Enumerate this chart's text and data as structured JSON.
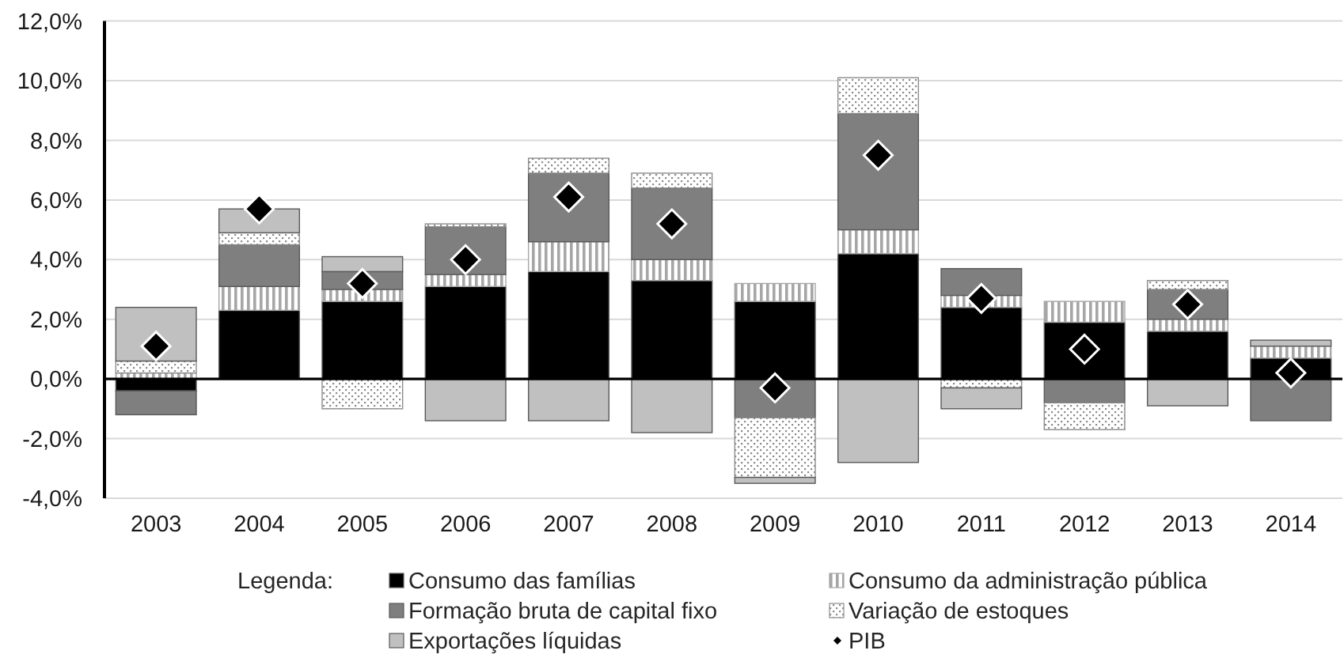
{
  "chart_data": {
    "type": "bar",
    "stacked": true,
    "categories": [
      "2003",
      "2004",
      "2005",
      "2006",
      "2007",
      "2008",
      "2009",
      "2010",
      "2011",
      "2012",
      "2013",
      "2014"
    ],
    "series": [
      {
        "name": "Consumo das famílias",
        "color": "#000000",
        "values": [
          -0.4,
          2.3,
          2.6,
          3.1,
          3.6,
          3.3,
          2.6,
          4.2,
          2.4,
          1.9,
          1.6,
          0.7
        ]
      },
      {
        "name": "Consumo da administração pública",
        "color": "#a6a6a6",
        "values": [
          0.2,
          0.8,
          0.4,
          0.4,
          1.0,
          0.7,
          0.6,
          0.8,
          0.4,
          0.7,
          0.4,
          0.4
        ]
      },
      {
        "name": "Formação bruta de capital fixo",
        "color": "#7f7f7f",
        "values": [
          -0.8,
          1.4,
          0.6,
          1.6,
          2.3,
          2.4,
          -1.3,
          3.9,
          0.9,
          -0.8,
          1.0,
          -1.4
        ]
      },
      {
        "name": "Variação de estoques",
        "color": "#8c8c8c",
        "values": [
          0.4,
          0.4,
          -1.0,
          0.1,
          0.5,
          0.5,
          -2.0,
          1.2,
          -0.3,
          -0.9,
          0.3,
          null
        ]
      },
      {
        "name": "Exportações líquidas",
        "color": "#c0c0c0",
        "values": [
          1.8,
          0.8,
          0.5,
          -1.4,
          -1.4,
          -1.8,
          -0.2,
          -2.8,
          -0.7,
          null,
          -0.9,
          0.2
        ]
      },
      {
        "name": "PIB",
        "type": "scatter",
        "marker": "diamond",
        "color": "#000000",
        "values": [
          1.1,
          5.7,
          3.2,
          4.0,
          6.1,
          5.2,
          -0.3,
          7.5,
          2.7,
          1.0,
          2.5,
          0.2
        ]
      }
    ],
    "ylim": [
      -4,
      12
    ],
    "yticks": [
      {
        "value": -4,
        "label": "-4,0%"
      },
      {
        "value": -2,
        "label": "-2,0%"
      },
      {
        "value": 0,
        "label": "0,0%"
      },
      {
        "value": 2,
        "label": "2,0%"
      },
      {
        "value": 4,
        "label": "4,0%"
      },
      {
        "value": 6,
        "label": "6,0%"
      },
      {
        "value": 8,
        "label": "8,0%"
      },
      {
        "value": 10,
        "label": "10,0%"
      },
      {
        "value": 12,
        "label": "12,0%"
      }
    ],
    "grid": "y",
    "legend": "bottom",
    "legend_title": "Legenda:"
  }
}
